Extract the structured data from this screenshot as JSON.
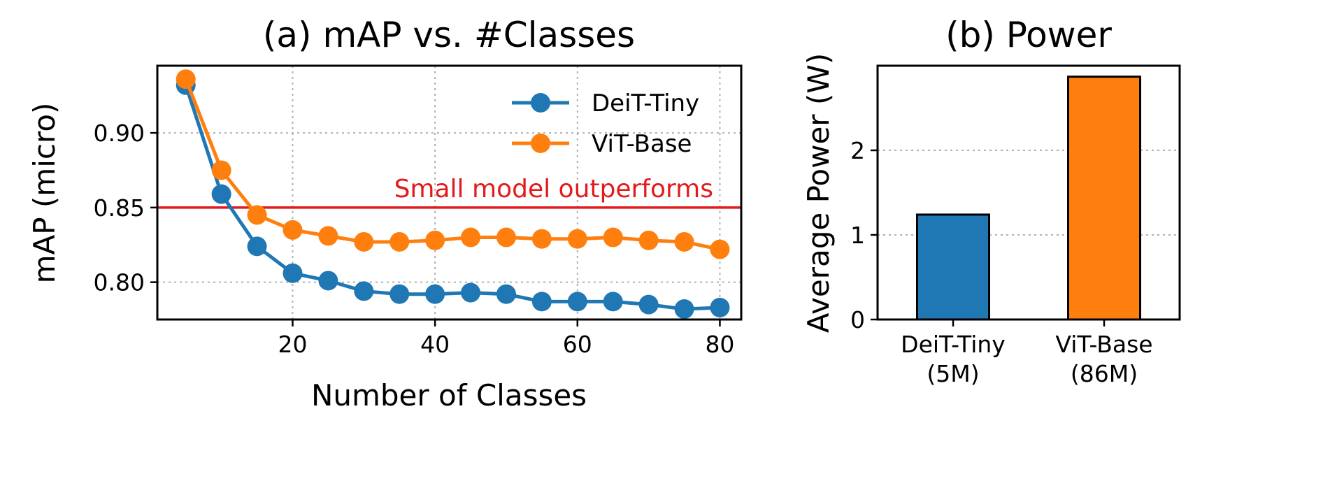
{
  "chart_data": [
    {
      "type": "line",
      "title": "(a) mAP vs. #Classes",
      "xlabel": "Number of Classes",
      "ylabel": "mAP (micro)",
      "xlim": [
        1,
        83
      ],
      "ylim": [
        0.775,
        0.945
      ],
      "xticks": [
        20,
        40,
        60,
        80
      ],
      "yticks": [
        0.8,
        0.85,
        0.9
      ],
      "ytick_labels": [
        "0.80",
        "0.85",
        "0.90"
      ],
      "grid": true,
      "legend": "top-right",
      "x": [
        5,
        10,
        15,
        20,
        25,
        30,
        35,
        40,
        45,
        50,
        55,
        60,
        65,
        70,
        75,
        80
      ],
      "series": [
        {
          "name": "DeiT-Tiny",
          "color": "#1f77b4",
          "values": [
            0.932,
            0.859,
            0.824,
            0.806,
            0.801,
            0.794,
            0.792,
            0.792,
            0.793,
            0.792,
            0.787,
            0.787,
            0.787,
            0.785,
            0.782,
            0.783
          ]
        },
        {
          "name": "ViT-Base",
          "color": "#ff7f0e",
          "values": [
            0.936,
            0.875,
            0.845,
            0.835,
            0.831,
            0.827,
            0.827,
            0.828,
            0.83,
            0.83,
            0.829,
            0.829,
            0.83,
            0.828,
            0.827,
            0.822
          ]
        }
      ],
      "reference_line": {
        "y": 0.85,
        "color": "#e31a1c",
        "label": "Small model outperforms"
      }
    },
    {
      "type": "bar",
      "title": "(b) Power",
      "xlabel": "",
      "ylabel": "Average Power (W)",
      "ylim": [
        0,
        3.0
      ],
      "yticks": [
        0,
        1,
        2
      ],
      "grid": true,
      "categories": [
        "DeiT-Tiny\n(5M)",
        "ViT-Base\n(86M)"
      ],
      "values": [
        1.24,
        2.87
      ],
      "colors": [
        "#1f77b4",
        "#ff7f0e"
      ]
    }
  ]
}
